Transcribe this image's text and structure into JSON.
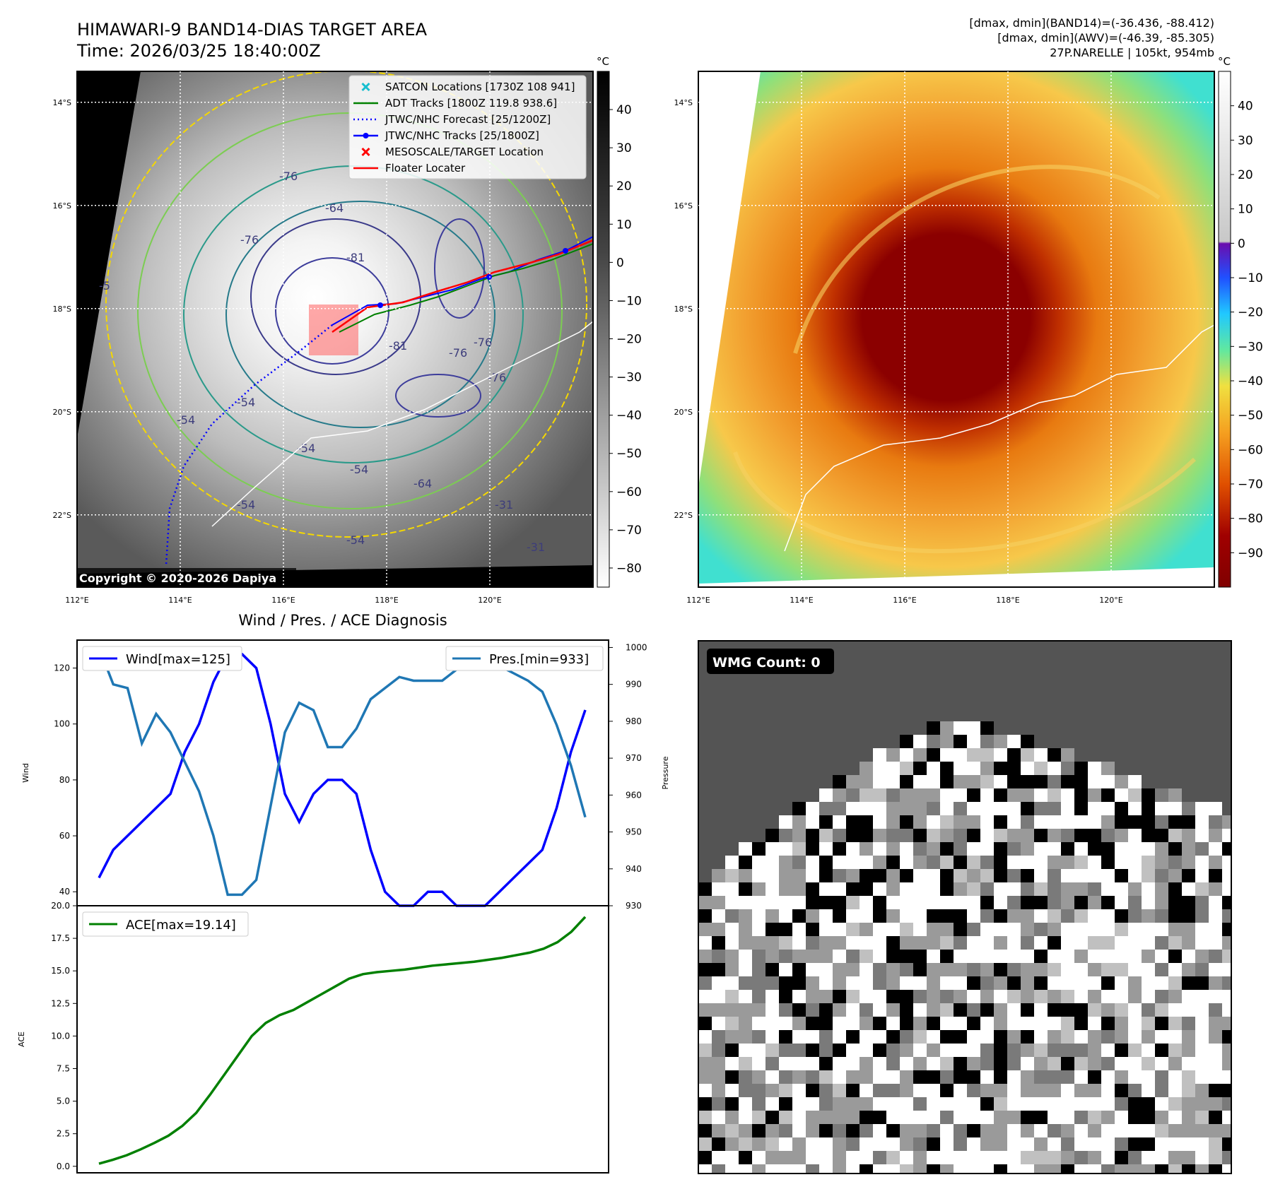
{
  "header": {
    "title": "HIMAWARI-9 BAND14-DIAS TARGET AREA",
    "time": "Time: 2026/03/25 18:40:00Z",
    "stats_band14": "[dmax, dmin](BAND14)=(-36.436, -88.412)",
    "stats_awv": "[dmax, dmin](AWV)=(-46.39, -85.305)",
    "storm": "27P.NARELLE | 105kt, 954mb"
  },
  "map": {
    "lon_ticks": [
      "112°E",
      "114°E",
      "116°E",
      "118°E",
      "120°E"
    ],
    "lat_ticks": [
      "14°S",
      "16°S",
      "18°S",
      "20°S",
      "22°S"
    ],
    "lon_range": [
      112,
      122
    ],
    "lat_range": [
      -13.4,
      -23.4
    ],
    "copyright": "Copyright © 2020-2026 Dapiya",
    "contour_labels": [
      "-76",
      "-64",
      "-76",
      "-81",
      "-81",
      "-76",
      "-76",
      "-76",
      "-54",
      "-54",
      "-64",
      "-54",
      "-54",
      "-54",
      "-54",
      "-31",
      "-31",
      "-5"
    ],
    "legend": [
      {
        "label": "SATCON Locations [1730Z 108 941]",
        "color": "#17becf",
        "marker": "x"
      },
      {
        "label": "ADT Tracks [1800Z 119.8 938.6]",
        "color": "#008000",
        "marker": "line"
      },
      {
        "label": "JTWC/NHC Forecast [25/1200Z]",
        "color": "#0000ff",
        "marker": "dotted"
      },
      {
        "label": "JTWC/NHC Tracks [25/1800Z]",
        "color": "#0000ff",
        "marker": "line-dot"
      },
      {
        "label": "MESOSCALE/TARGET Location",
        "color": "#ff0000",
        "marker": "x"
      },
      {
        "label": "Floater Locater",
        "color": "#ff0000",
        "marker": "line"
      }
    ]
  },
  "colorbar_gray": {
    "unit": "°C",
    "range": [
      -85,
      50
    ],
    "ticks": [
      "40",
      "30",
      "20",
      "10",
      "0",
      "−10",
      "−20",
      "−30",
      "−40",
      "−50",
      "−60",
      "−70",
      "−80"
    ],
    "tick_values": [
      40,
      30,
      20,
      10,
      0,
      -10,
      -20,
      -30,
      -40,
      -50,
      -60,
      -70,
      -80
    ]
  },
  "colorbar_color": {
    "unit": "°C",
    "range": [
      -100,
      50
    ],
    "ticks": [
      "40",
      "30",
      "20",
      "10",
      "0",
      "−10",
      "−20",
      "−30",
      "−40",
      "−50",
      "−60",
      "−70",
      "−80",
      "−90"
    ],
    "tick_values": [
      40,
      30,
      20,
      10,
      0,
      -10,
      -20,
      -30,
      -40,
      -50,
      -60,
      -70,
      -80,
      -90
    ]
  },
  "chart_data": [
    {
      "type": "line",
      "title": "Wind / Pres. / ACE Diagnosis",
      "ylabel": "Wind",
      "ylabel_right": "Pressure",
      "ylim": [
        35,
        130
      ],
      "ylim_right": [
        930,
        1002
      ],
      "yticks": [
        40,
        60,
        80,
        100,
        120
      ],
      "yticks_right": [
        930,
        940,
        950,
        960,
        970,
        980,
        990,
        1000
      ],
      "series": [
        {
          "name": "Wind[max=125]",
          "color": "#0000ff",
          "axis": "left",
          "values": [
            45,
            55,
            60,
            65,
            70,
            75,
            90,
            100,
            115,
            125,
            125,
            120,
            100,
            75,
            65,
            75,
            80,
            80,
            75,
            55,
            40,
            35,
            35,
            40,
            40,
            35,
            35,
            35,
            40,
            45,
            50,
            55,
            70,
            90,
            105
          ]
        },
        {
          "name": "Pres.[min=933]",
          "color": "#1f77b4",
          "axis": "right",
          "values": [
            1000,
            990,
            989,
            974,
            982,
            977,
            969,
            961,
            949,
            933,
            933,
            937,
            957,
            977,
            985,
            983,
            973,
            973,
            978,
            986,
            989,
            992,
            991,
            991,
            991,
            994,
            996,
            996,
            995,
            993,
            991,
            988,
            979,
            968,
            954
          ]
        }
      ]
    },
    {
      "type": "line",
      "ylabel": "ACE",
      "ylim": [
        -0.5,
        20
      ],
      "yticks": [
        "0.0",
        "2.5",
        "5.0",
        "7.5",
        "10.0",
        "12.5",
        "15.0",
        "17.5",
        "20.0"
      ],
      "series": [
        {
          "name": "ACE[max=19.14]",
          "color": "#008000",
          "values": [
            0.2,
            0.5,
            0.85,
            1.3,
            1.8,
            2.35,
            3.1,
            4.1,
            5.5,
            7.0,
            8.5,
            10.0,
            11.0,
            11.6,
            12.0,
            12.6,
            13.2,
            13.8,
            14.4,
            14.75,
            14.9,
            15.0,
            15.1,
            15.25,
            15.4,
            15.5,
            15.6,
            15.7,
            15.85,
            16.0,
            16.2,
            16.4,
            16.7,
            17.2,
            18.0,
            19.14
          ]
        }
      ]
    }
  ],
  "wmg": {
    "label": "WMG Count: 0"
  }
}
